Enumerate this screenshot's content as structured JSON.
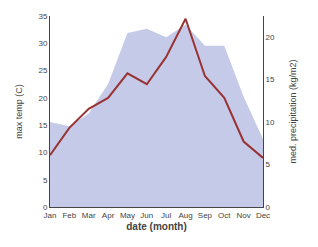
{
  "chart_data": {
    "type": "line",
    "categories": [
      "Jan",
      "Feb",
      "Mar",
      "Apr",
      "May",
      "Jun",
      "Jul",
      "Aug",
      "Sep",
      "Oct",
      "Nov",
      "Dec"
    ],
    "series": [
      {
        "type": "area",
        "axis": "y2",
        "color": "#c5cae9",
        "values": [
          10.0,
          9.5,
          11.0,
          14.5,
          20.5,
          21.0,
          20.0,
          21.5,
          19.0,
          19.0,
          13.0,
          8.0
        ]
      },
      {
        "type": "line",
        "color": "#993333",
        "values": [
          9.5,
          14.5,
          18.0,
          20.0,
          24.5,
          22.5,
          27.5,
          34.5,
          24.0,
          20.0,
          12.0,
          9.0
        ]
      }
    ],
    "xlabel": "date (month)",
    "ylabel": "max temp (C)",
    "y2label": "med. precipitation (kg/m2)",
    "ylim": [
      0,
      35
    ],
    "yticks": [
      0,
      5,
      10,
      15,
      20,
      25,
      30,
      35
    ],
    "y2lim": [
      0,
      22.5
    ],
    "y2ticks": [
      0,
      5,
      10,
      15,
      20
    ],
    "grid": false
  }
}
